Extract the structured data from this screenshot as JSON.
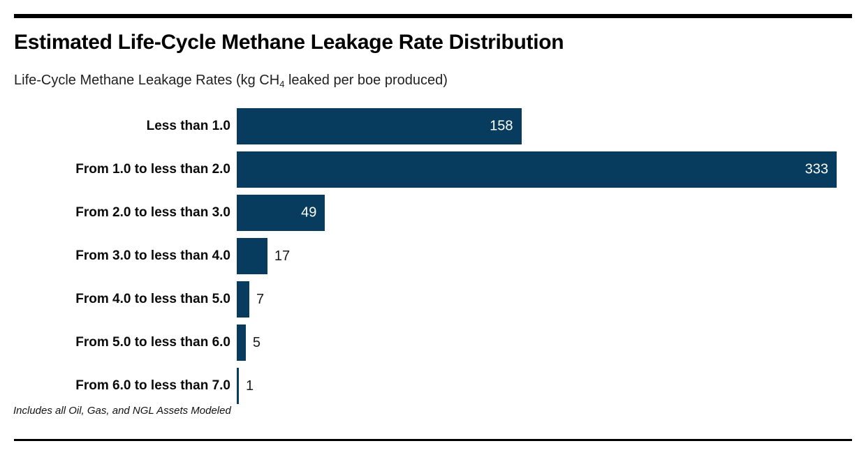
{
  "page": {
    "title": "Estimated Life-Cycle Methane Leakage Rate Distribution",
    "subtitle_prefix": "Life-Cycle Methane Leakage Rates (kg CH",
    "subtitle_sub": "4",
    "subtitle_suffix": " leaked per boe produced)",
    "footnote": "Includes all Oil, Gas, and NGL Assets Modeled"
  },
  "colors": {
    "bar": "#073c5e",
    "rule": "#000000",
    "inside_label": "#ffffff",
    "outside_label": "#1a1a1a"
  },
  "chart_data": {
    "type": "bar",
    "orientation": "horizontal",
    "title": "Estimated Life-Cycle Methane Leakage Rate Distribution",
    "subtitle": "Life-Cycle Methane Leakage Rates (kg CH₄ leaked per boe produced)",
    "footnote": "Includes all Oil, Gas, and NGL Assets Modeled",
    "categories": [
      "Less than 1.0",
      "From 1.0 to less than 2.0",
      "From 2.0 to less than 3.0",
      "From 3.0 to less than 4.0",
      "From 4.0 to less than 5.0",
      "From 5.0 to less than 6.0",
      "From 6.0 to less than 7.0"
    ],
    "values": [
      158,
      333,
      49,
      17,
      7,
      5,
      1
    ],
    "xlim": [
      0,
      333
    ],
    "grid": false,
    "axis_ticks": false,
    "value_labels": true,
    "value_label_placement": "inside bar (white) for large bars, outside right (dark) for small bars",
    "legend": "none"
  }
}
